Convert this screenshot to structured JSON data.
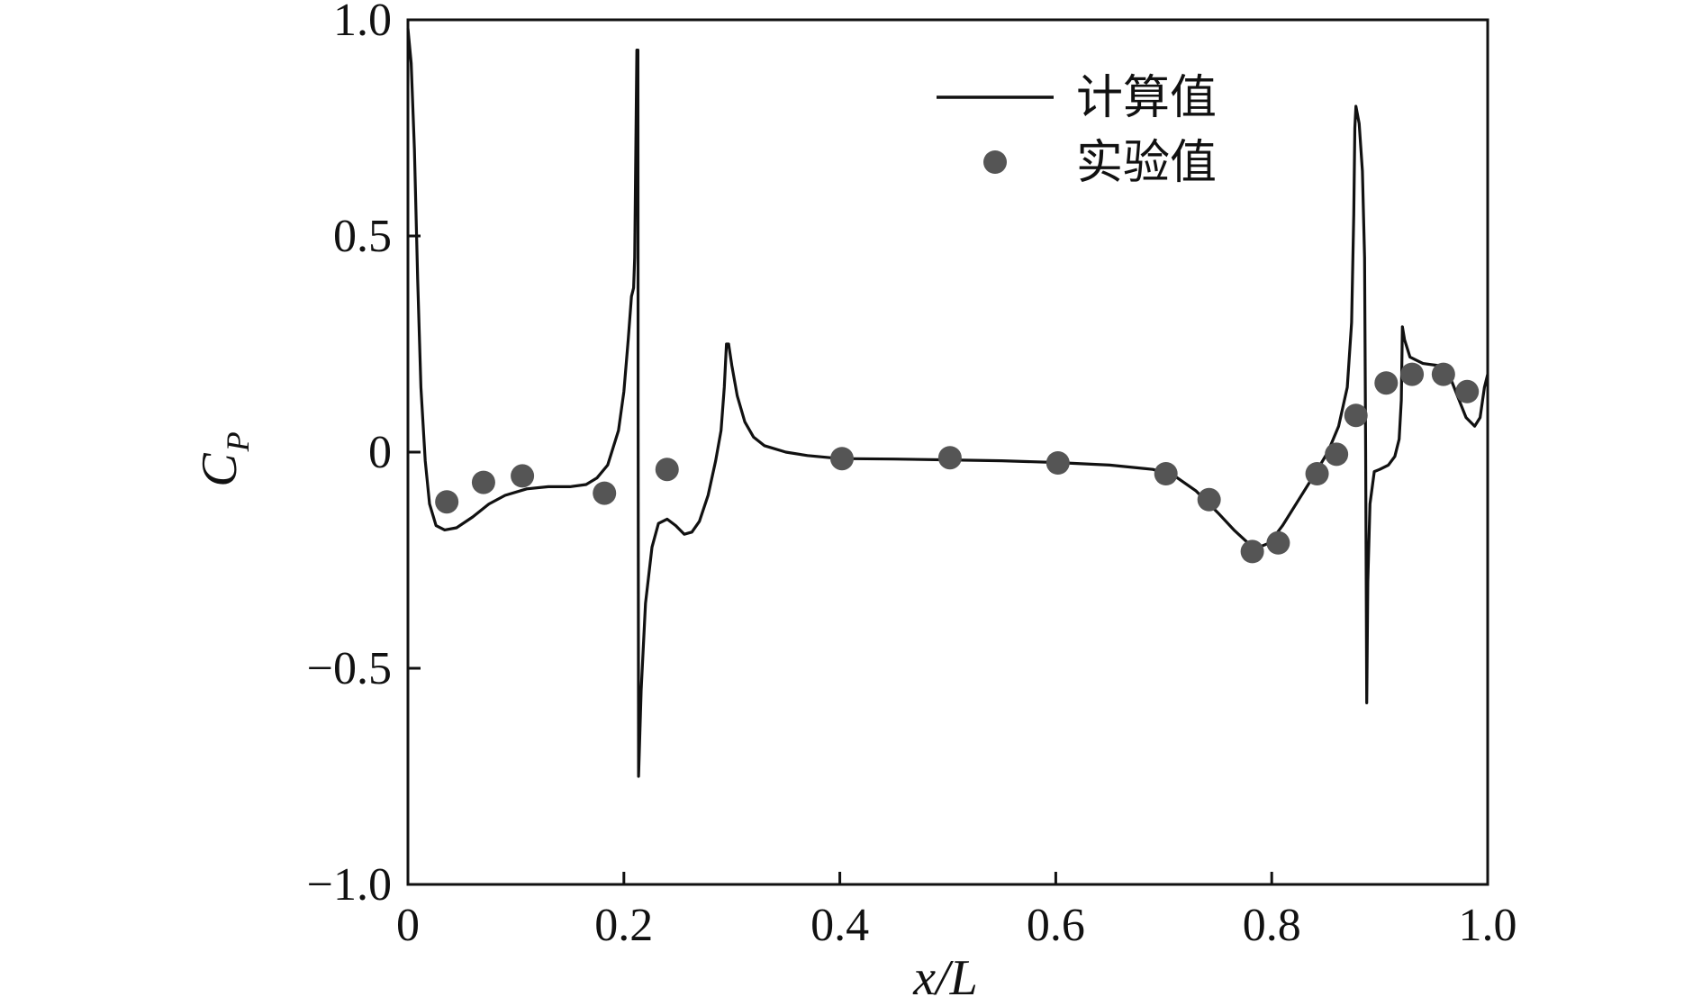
{
  "chart_data": {
    "type": "line",
    "xlabel": "x/L",
    "ylabel_main": "C",
    "ylabel_sub": "P",
    "xlim": [
      0,
      1.0
    ],
    "ylim": [
      -1.0,
      1.0
    ],
    "xticks": [
      0,
      0.2,
      0.4,
      0.6,
      0.8,
      1.0
    ],
    "xtick_labels": [
      "0",
      "0.2",
      "0.4",
      "0.6",
      "0.8",
      "1.0"
    ],
    "yticks": [
      1.0,
      0.5,
      0,
      -0.5,
      -1.0
    ],
    "ytick_labels": [
      "1.0",
      "0.5",
      "0",
      "−0.5",
      "−1.0"
    ],
    "grid": false,
    "legend_position": "top-right",
    "colors": {
      "line": "#111111",
      "marker": "#555555",
      "axis": "#111111"
    },
    "series": [
      {
        "name": "计算值",
        "type": "line",
        "points": [
          [
            0.0,
            0.98
          ],
          [
            0.003,
            0.9
          ],
          [
            0.006,
            0.7
          ],
          [
            0.009,
            0.4
          ],
          [
            0.012,
            0.15
          ],
          [
            0.016,
            -0.02
          ],
          [
            0.02,
            -0.12
          ],
          [
            0.026,
            -0.17
          ],
          [
            0.034,
            -0.18
          ],
          [
            0.045,
            -0.175
          ],
          [
            0.06,
            -0.15
          ],
          [
            0.075,
            -0.12
          ],
          [
            0.09,
            -0.1
          ],
          [
            0.11,
            -0.085
          ],
          [
            0.13,
            -0.08
          ],
          [
            0.15,
            -0.08
          ],
          [
            0.165,
            -0.075
          ],
          [
            0.175,
            -0.06
          ],
          [
            0.185,
            -0.03
          ],
          [
            0.195,
            0.05
          ],
          [
            0.2,
            0.14
          ],
          [
            0.204,
            0.26
          ],
          [
            0.207,
            0.36
          ],
          [
            0.209,
            0.38
          ],
          [
            0.21,
            0.45
          ],
          [
            0.212,
            0.93
          ],
          [
            0.213,
            0.93
          ],
          [
            0.2132,
            0.1
          ],
          [
            0.2134,
            -0.4
          ],
          [
            0.2136,
            -0.75
          ],
          [
            0.216,
            -0.55
          ],
          [
            0.22,
            -0.35
          ],
          [
            0.226,
            -0.22
          ],
          [
            0.232,
            -0.165
          ],
          [
            0.24,
            -0.155
          ],
          [
            0.248,
            -0.17
          ],
          [
            0.256,
            -0.19
          ],
          [
            0.263,
            -0.185
          ],
          [
            0.27,
            -0.16
          ],
          [
            0.278,
            -0.1
          ],
          [
            0.285,
            -0.02
          ],
          [
            0.29,
            0.05
          ],
          [
            0.293,
            0.15
          ],
          [
            0.295,
            0.25
          ],
          [
            0.297,
            0.25
          ],
          [
            0.3,
            0.2
          ],
          [
            0.305,
            0.13
          ],
          [
            0.312,
            0.07
          ],
          [
            0.32,
            0.035
          ],
          [
            0.33,
            0.015
          ],
          [
            0.35,
            0.0
          ],
          [
            0.37,
            -0.008
          ],
          [
            0.4,
            -0.015
          ],
          [
            0.45,
            -0.016
          ],
          [
            0.5,
            -0.018
          ],
          [
            0.55,
            -0.02
          ],
          [
            0.6,
            -0.024
          ],
          [
            0.65,
            -0.03
          ],
          [
            0.69,
            -0.04
          ],
          [
            0.71,
            -0.055
          ],
          [
            0.73,
            -0.09
          ],
          [
            0.75,
            -0.14
          ],
          [
            0.765,
            -0.18
          ],
          [
            0.778,
            -0.21
          ],
          [
            0.788,
            -0.22
          ],
          [
            0.798,
            -0.21
          ],
          [
            0.81,
            -0.17
          ],
          [
            0.825,
            -0.11
          ],
          [
            0.84,
            -0.05
          ],
          [
            0.852,
            0.0
          ],
          [
            0.862,
            0.06
          ],
          [
            0.87,
            0.15
          ],
          [
            0.874,
            0.3
          ],
          [
            0.876,
            0.55
          ],
          [
            0.877,
            0.75
          ],
          [
            0.878,
            0.8
          ],
          [
            0.881,
            0.76
          ],
          [
            0.884,
            0.65
          ],
          [
            0.886,
            0.45
          ],
          [
            0.887,
            0.0
          ],
          [
            0.888,
            -0.58
          ],
          [
            0.889,
            -0.3
          ],
          [
            0.891,
            -0.12
          ],
          [
            0.895,
            -0.045
          ],
          [
            0.9,
            -0.04
          ],
          [
            0.908,
            -0.03
          ],
          [
            0.914,
            -0.01
          ],
          [
            0.918,
            0.03
          ],
          [
            0.92,
            0.12
          ],
          [
            0.921,
            0.29
          ],
          [
            0.923,
            0.26
          ],
          [
            0.928,
            0.22
          ],
          [
            0.94,
            0.205
          ],
          [
            0.955,
            0.2
          ],
          [
            0.965,
            0.175
          ],
          [
            0.972,
            0.13
          ],
          [
            0.98,
            0.08
          ],
          [
            0.988,
            0.06
          ],
          [
            0.993,
            0.08
          ],
          [
            0.997,
            0.15
          ],
          [
            1.0,
            0.18
          ]
        ]
      },
      {
        "name": "实验值",
        "type": "scatter",
        "points": [
          [
            0.036,
            -0.115
          ],
          [
            0.07,
            -0.07
          ],
          [
            0.106,
            -0.055
          ],
          [
            0.182,
            -0.095
          ],
          [
            0.24,
            -0.04
          ],
          [
            0.402,
            -0.015
          ],
          [
            0.502,
            -0.013
          ],
          [
            0.602,
            -0.025
          ],
          [
            0.702,
            -0.05
          ],
          [
            0.742,
            -0.11
          ],
          [
            0.782,
            -0.23
          ],
          [
            0.806,
            -0.21
          ],
          [
            0.842,
            -0.05
          ],
          [
            0.86,
            -0.005
          ],
          [
            0.878,
            0.085
          ],
          [
            0.906,
            0.16
          ],
          [
            0.93,
            0.18
          ],
          [
            0.959,
            0.18
          ],
          [
            0.981,
            0.14
          ]
        ]
      }
    ]
  }
}
